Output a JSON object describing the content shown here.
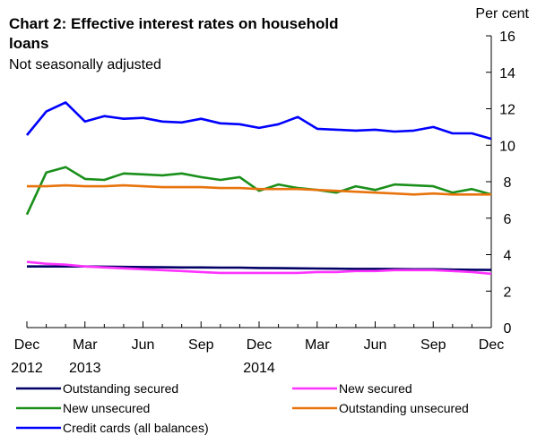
{
  "chart_data": {
    "type": "line",
    "title": "Chart 2: Effective interest rates on household loans",
    "subtitle": "Not seasonally adjusted",
    "ylabel": "Per cent",
    "ylim": [
      0,
      16
    ],
    "yticks": [
      "0",
      "2",
      "4",
      "6",
      "8",
      "10",
      "12",
      "14",
      "16"
    ],
    "y_axis_side": "right",
    "x": [
      "2012-12",
      "2013-01",
      "2013-02",
      "2013-03",
      "2013-04",
      "2013-05",
      "2013-06",
      "2013-07",
      "2013-08",
      "2013-09",
      "2013-10",
      "2013-11",
      "2013-12",
      "2014-01",
      "2014-02",
      "2014-03",
      "2014-04",
      "2014-05",
      "2014-06",
      "2014-07",
      "2014-08",
      "2014-09",
      "2014-10",
      "2014-11",
      "2014-12"
    ],
    "xtick_labels": [
      "Dec",
      "Mar",
      "Jun",
      "Sep",
      "Dec",
      "Mar",
      "Jun",
      "Sep",
      "Dec"
    ],
    "year_labels": [
      "2012",
      "2013",
      "2014"
    ],
    "grid": false,
    "legend_placement": "bottom",
    "series": [
      {
        "name": "Outstanding secured",
        "color": "#000066",
        "values": [
          3.35,
          3.35,
          3.35,
          3.35,
          3.34,
          3.33,
          3.32,
          3.31,
          3.3,
          3.3,
          3.29,
          3.29,
          3.27,
          3.26,
          3.25,
          3.24,
          3.23,
          3.22,
          3.22,
          3.21,
          3.2,
          3.2,
          3.18,
          3.17,
          3.16
        ]
      },
      {
        "name": "New secured",
        "color": "#ff33ff",
        "values": [
          3.6,
          3.5,
          3.45,
          3.35,
          3.3,
          3.25,
          3.2,
          3.15,
          3.1,
          3.05,
          3.0,
          3.0,
          3.0,
          3.0,
          3.0,
          3.05,
          3.05,
          3.1,
          3.1,
          3.15,
          3.15,
          3.15,
          3.1,
          3.05,
          2.95
        ]
      },
      {
        "name": "New unsecured",
        "color": "#1a8f1a",
        "values": [
          6.2,
          8.5,
          8.8,
          8.15,
          8.1,
          8.45,
          8.4,
          8.35,
          8.45,
          8.25,
          8.1,
          8.25,
          7.5,
          7.85,
          7.65,
          7.55,
          7.4,
          7.75,
          7.55,
          7.85,
          7.8,
          7.75,
          7.4,
          7.6,
          7.3
        ]
      },
      {
        "name": "Outstanding unsecured",
        "color": "#e8730c",
        "values": [
          7.75,
          7.75,
          7.8,
          7.75,
          7.75,
          7.8,
          7.75,
          7.7,
          7.7,
          7.7,
          7.65,
          7.65,
          7.6,
          7.6,
          7.6,
          7.55,
          7.5,
          7.45,
          7.4,
          7.35,
          7.3,
          7.35,
          7.3,
          7.3,
          7.3
        ]
      },
      {
        "name": "Credit cards (all balances)",
        "color": "#0000ff",
        "values": [
          10.55,
          11.85,
          12.35,
          11.3,
          11.6,
          11.45,
          11.5,
          11.3,
          11.25,
          11.45,
          11.2,
          11.15,
          10.95,
          11.15,
          11.55,
          10.9,
          10.85,
          10.8,
          10.85,
          10.75,
          10.8,
          11.0,
          10.65,
          10.65,
          10.35
        ]
      }
    ]
  }
}
